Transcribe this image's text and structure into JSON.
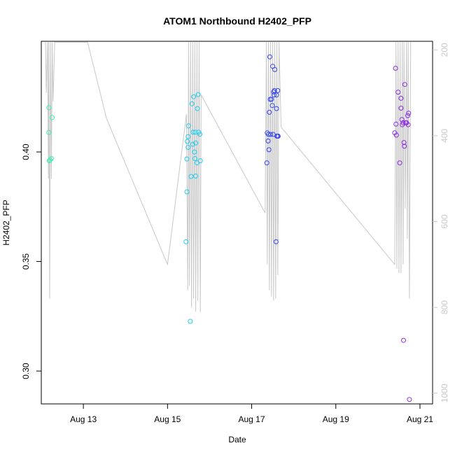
{
  "chart_data": {
    "type": "scatter",
    "title": "ATOM1 Northbound H2402_PFP",
    "xlabel": "Date",
    "ylabel": "H2402_PFP",
    "x_ticks": [
      "Aug 13",
      "Aug 15",
      "Aug 17",
      "Aug 19",
      "Aug 21"
    ],
    "x_tick_days": [
      13,
      15,
      17,
      19,
      21
    ],
    "xlim_days": [
      12.0,
      21.3
    ],
    "ylim": [
      0.285,
      0.4505
    ],
    "y_ticks": [
      0.3,
      0.35,
      0.4
    ],
    "y_tick_labels": [
      "0.30",
      "0.35",
      "0.40"
    ],
    "right_axis": {
      "ticks": [
        200,
        400,
        600,
        800,
        1000
      ],
      "tick_labels": [
        "200",
        "400",
        "600",
        "800",
        "1000"
      ],
      "lim": [
        180,
        1025
      ],
      "color": "#c8c8c8"
    },
    "series": [
      {
        "color": "#3DEBB0",
        "points": [
          [
            12.18,
            0.4202
          ],
          [
            12.18,
            0.4089
          ],
          [
            12.19,
            0.396
          ],
          [
            12.21,
            0.3964
          ],
          [
            12.24,
            0.397
          ],
          [
            12.26,
            0.4157
          ]
        ]
      },
      {
        "color": "#22CCEE",
        "points": [
          [
            15.44,
            0.359
          ],
          [
            15.46,
            0.3818
          ],
          [
            15.46,
            0.3968
          ],
          [
            15.47,
            0.4048
          ],
          [
            15.49,
            0.4021
          ],
          [
            15.49,
            0.407
          ],
          [
            15.5,
            0.4119
          ],
          [
            15.54,
            0.3227
          ],
          [
            15.56,
            0.3888
          ],
          [
            15.58,
            0.422
          ],
          [
            15.6,
            0.4035
          ],
          [
            15.61,
            0.409
          ],
          [
            15.62,
            0.4252
          ],
          [
            15.64,
            0.4
          ],
          [
            15.65,
            0.397
          ],
          [
            15.66,
            0.409
          ],
          [
            15.67,
            0.389
          ],
          [
            15.67,
            0.4041
          ],
          [
            15.7,
            0.395
          ],
          [
            15.71,
            0.4198
          ],
          [
            15.73,
            0.4262
          ],
          [
            15.74,
            0.409
          ],
          [
            15.77,
            0.4081
          ],
          [
            15.78,
            0.396
          ]
        ]
      },
      {
        "color": "#3344EE",
        "points": [
          [
            17.36,
            0.395
          ],
          [
            17.37,
            0.4087
          ],
          [
            17.39,
            0.405
          ],
          [
            17.4,
            0.408
          ],
          [
            17.41,
            0.401
          ],
          [
            17.42,
            0.4181
          ],
          [
            17.43,
            0.4434
          ],
          [
            17.44,
            0.424
          ],
          [
            17.45,
            0.408
          ],
          [
            17.47,
            0.424
          ],
          [
            17.49,
            0.4212
          ],
          [
            17.5,
            0.4391
          ],
          [
            17.51,
            0.408
          ],
          [
            17.52,
            0.4274
          ],
          [
            17.53,
            0.426
          ],
          [
            17.54,
            0.428
          ],
          [
            17.55,
            0.4376
          ],
          [
            17.58,
            0.359
          ],
          [
            17.59,
            0.426
          ],
          [
            17.59,
            0.4198
          ],
          [
            17.6,
            0.4072
          ],
          [
            17.61,
            0.4072
          ],
          [
            17.62,
            0.428
          ],
          [
            17.63,
            0.4072
          ]
        ]
      },
      {
        "color": "#8A2BE2",
        "points": [
          [
            20.4,
            0.4087
          ],
          [
            20.42,
            0.4382
          ],
          [
            20.43,
            0.4127
          ],
          [
            20.44,
            0.4077
          ],
          [
            20.48,
            0.4273
          ],
          [
            20.52,
            0.395
          ],
          [
            20.55,
            0.42
          ],
          [
            20.55,
            0.4245
          ],
          [
            20.57,
            0.4148
          ],
          [
            20.58,
            0.4124
          ],
          [
            20.6,
            0.4133
          ],
          [
            20.61,
            0.314
          ],
          [
            20.62,
            0.4043
          ],
          [
            20.63,
            0.4026
          ],
          [
            20.64,
            0.4308
          ],
          [
            20.66,
            0.4133
          ],
          [
            20.68,
            0.4133
          ],
          [
            20.71,
            0.4166
          ],
          [
            20.72,
            0.4124
          ],
          [
            20.73,
            0.4177
          ],
          [
            20.75,
            0.287
          ]
        ]
      }
    ],
    "background_line": {
      "color": "#c8c8c8",
      "axis": "right",
      "x": [
        12.1,
        12.12,
        12.15,
        12.17,
        12.18,
        12.2,
        12.22,
        12.24,
        12.26,
        12.28,
        12.32,
        13.1,
        13.55,
        15.0,
        15.45,
        15.48,
        15.5,
        15.52,
        15.55,
        15.57,
        15.6,
        15.62,
        15.65,
        15.67,
        15.7,
        15.72,
        15.75,
        15.78,
        15.8,
        17.32,
        17.35,
        17.37,
        17.4,
        17.42,
        17.45,
        17.47,
        17.5,
        17.52,
        17.55,
        17.57,
        17.6,
        17.62,
        17.65,
        17.7,
        20.4,
        20.43,
        20.45,
        20.48,
        20.5,
        20.53,
        20.55,
        20.58,
        20.6,
        20.62,
        20.65,
        20.68,
        20.7,
        20.72,
        20.75,
        20.78
      ],
      "y": [
        182,
        300,
        182,
        500,
        182,
        780,
        182,
        500,
        182,
        320,
        182,
        182,
        360,
        700,
        350,
        760,
        182,
        750,
        182,
        800,
        182,
        780,
        182,
        810,
        182,
        785,
        182,
        812,
        305,
        580,
        182,
        700,
        182,
        760,
        182,
        775,
        182,
        785,
        182,
        780,
        182,
        725,
        182,
        380,
        700,
        182,
        710,
        182,
        720,
        182,
        720,
        182,
        700,
        182,
        570,
        182,
        640,
        182,
        780,
        182
      ]
    }
  }
}
